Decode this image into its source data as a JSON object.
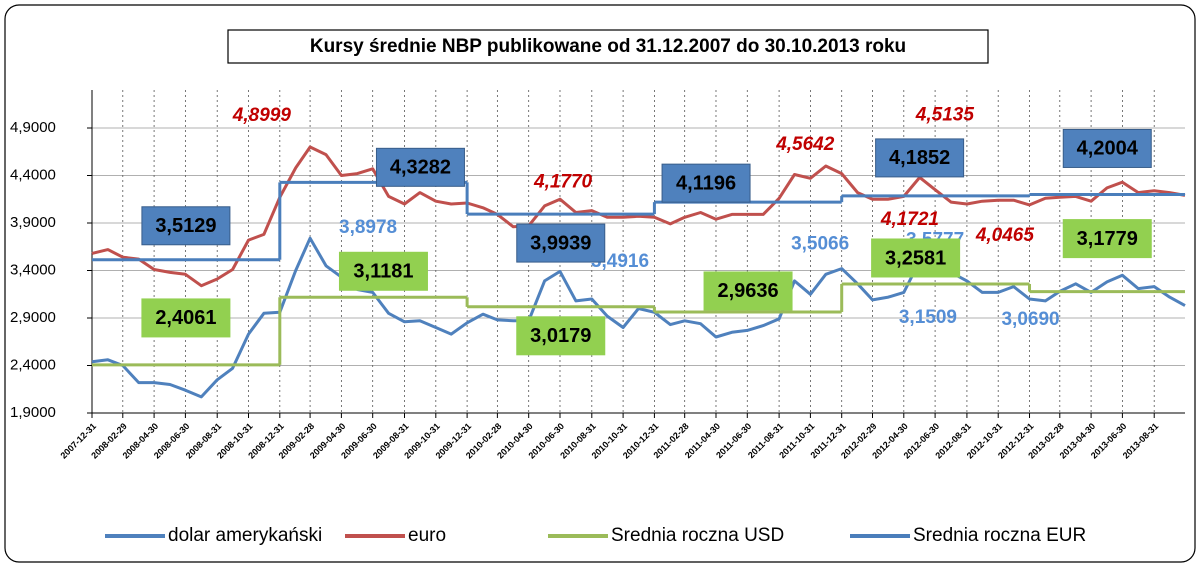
{
  "chart_data": {
    "type": "line",
    "title": "Kursy średnie NBP publikowane od 31.12.2007 do 30.10.2013 roku",
    "x": [
      "2007-12-31",
      "2008-01-31",
      "2008-02-29",
      "2008-03-31",
      "2008-04-30",
      "2008-05-31",
      "2008-06-30",
      "2008-07-31",
      "2008-08-31",
      "2008-09-30",
      "2008-10-31",
      "2008-11-30",
      "2008-12-31",
      "2009-01-31",
      "2009-02-28",
      "2009-03-31",
      "2009-04-30",
      "2009-05-31",
      "2009-06-30",
      "2009-07-31",
      "2009-08-31",
      "2009-09-30",
      "2009-10-31",
      "2009-11-30",
      "2009-12-31",
      "2010-01-31",
      "2010-02-28",
      "2010-03-31",
      "2010-04-30",
      "2010-05-31",
      "2010-06-30",
      "2010-07-31",
      "2010-08-31",
      "2010-09-30",
      "2010-10-31",
      "2010-11-30",
      "2010-12-31",
      "2011-01-31",
      "2011-02-28",
      "2011-03-31",
      "2011-04-30",
      "2011-05-31",
      "2011-06-30",
      "2011-07-31",
      "2011-08-31",
      "2011-09-30",
      "2011-10-31",
      "2011-11-30",
      "2011-12-31",
      "2012-01-31",
      "2012-02-29",
      "2012-03-31",
      "2012-04-30",
      "2012-05-31",
      "2012-06-30",
      "2012-07-31",
      "2012-08-31",
      "2012-09-30",
      "2012-10-31",
      "2012-11-30",
      "2012-12-31",
      "2013-01-31",
      "2013-02-28",
      "2013-03-31",
      "2013-04-30",
      "2013-05-31",
      "2013-06-30",
      "2013-07-31",
      "2013-08-31",
      "2013-09-30",
      "2013-10-30"
    ],
    "series": [
      {
        "name": "dolar amerykański",
        "color": "#4f81bd",
        "values": [
          2.44,
          2.46,
          2.4,
          2.22,
          2.22,
          2.2,
          2.14,
          2.07,
          2.25,
          2.37,
          2.73,
          2.95,
          2.96,
          3.4,
          3.74,
          3.45,
          3.33,
          3.2,
          3.17,
          2.95,
          2.86,
          2.87,
          2.8,
          2.73,
          2.85,
          2.94,
          2.88,
          2.87,
          2.87,
          3.29,
          3.39,
          3.08,
          3.1,
          2.92,
          2.8,
          3.0,
          2.96,
          2.83,
          2.87,
          2.84,
          2.7,
          2.75,
          2.77,
          2.82,
          2.89,
          3.29,
          3.15,
          3.36,
          3.42,
          3.26,
          3.09,
          3.12,
          3.17,
          3.5,
          3.4,
          3.38,
          3.29,
          3.17,
          3.17,
          3.23,
          3.1,
          3.08,
          3.18,
          3.26,
          3.17,
          3.28,
          3.35,
          3.21,
          3.23,
          3.12,
          3.03
        ]
      },
      {
        "name": "euro",
        "color": "#c0504d",
        "values": [
          3.58,
          3.62,
          3.54,
          3.52,
          3.41,
          3.38,
          3.36,
          3.24,
          3.31,
          3.41,
          3.72,
          3.78,
          4.17,
          4.48,
          4.7,
          4.62,
          4.4,
          4.42,
          4.47,
          4.18,
          4.1,
          4.22,
          4.13,
          4.1,
          4.11,
          4.06,
          3.99,
          3.86,
          3.87,
          4.08,
          4.15,
          4.01,
          4.03,
          3.96,
          3.96,
          3.97,
          3.96,
          3.89,
          3.96,
          4.01,
          3.94,
          3.99,
          3.99,
          3.99,
          4.16,
          4.41,
          4.37,
          4.5,
          4.42,
          4.22,
          4.15,
          4.15,
          4.18,
          4.38,
          4.25,
          4.12,
          4.1,
          4.13,
          4.14,
          4.14,
          4.09,
          4.16,
          4.17,
          4.18,
          4.13,
          4.27,
          4.33,
          4.22,
          4.24,
          4.22,
          4.19
        ]
      },
      {
        "name": "Srednia roczna USD",
        "color": "#9bbb59",
        "box_color": "#92d050",
        "x": [
          "2007-12-31",
          "2008-12-31",
          "2009-12-31",
          "2010-12-31",
          "2011-12-31",
          "2012-12-31"
        ],
        "values": [
          2.4061,
          3.1181,
          3.0179,
          2.9636,
          3.2581,
          3.1779
        ],
        "value_labels": [
          "2,4061",
          "3,1181",
          "3,0179",
          "2,9636",
          "3,2581",
          "3,1779"
        ]
      },
      {
        "name": "Srednia roczna EUR",
        "color": "#4a7ebb",
        "box_color": "#4f81bd",
        "x": [
          "2007-12-31",
          "2008-12-31",
          "2009-12-31",
          "2010-12-31",
          "2011-12-31",
          "2012-12-31"
        ],
        "values": [
          3.5129,
          4.3282,
          3.9939,
          4.1196,
          4.1852,
          4.2004
        ],
        "value_labels": [
          "3,5129",
          "4,3282",
          "3,9939",
          "4,1196",
          "4,1852",
          "4,2004"
        ]
      }
    ],
    "annotations": [
      {
        "text": "4,8999",
        "x": "2008-11-26",
        "value": 4.8999,
        "color": "#c00000"
      },
      {
        "text": "4,1770",
        "x": "2010-07-06",
        "value": 4.177,
        "color": "#c00000"
      },
      {
        "text": "4,5642",
        "x": "2011-10-21",
        "value": 4.5642,
        "color": "#c00000"
      },
      {
        "text": "4,5135",
        "x": "2012-07-19",
        "value": 4.5135,
        "color": "#c00000"
      },
      {
        "text": "4,1721",
        "x": "2012-05-12",
        "value": 4.1721,
        "color": "#c00000"
      },
      {
        "text": "4,0465",
        "x": "2012-11-13",
        "value": 4.0465,
        "color": "#c00000"
      },
      {
        "text": "3,8978",
        "x": "2009-06-21",
        "value": 3.8978,
        "color": "#558ed5"
      },
      {
        "text": "3,4916",
        "x": "2010-10-25",
        "value": 3.4916,
        "color": "#558ed5"
      },
      {
        "text": "3,5066",
        "x": "2011-11-19",
        "value": 3.5066,
        "color": "#558ed5"
      },
      {
        "text": "3,5777",
        "x": "2012-06-30",
        "value": 3.5777,
        "color": "#558ed5"
      },
      {
        "text": "3,1509",
        "x": "2012-06-16",
        "value": 3.1509,
        "color": "#558ed5"
      },
      {
        "text": "3,0690",
        "x": "2013-01-02",
        "value": 3.069,
        "color": "#558ed5"
      }
    ],
    "xlim": [
      "2007-12-31",
      "2013-10-30"
    ],
    "xticks": [
      "2007-12-31",
      "2008-02-29",
      "2008-04-30",
      "2008-06-30",
      "2008-08-31",
      "2008-10-31",
      "2008-12-31",
      "2009-02-28",
      "2009-04-30",
      "2009-06-30",
      "2009-08-31",
      "2009-10-31",
      "2009-12-31",
      "2010-02-28",
      "2010-04-30",
      "2010-06-30",
      "2010-08-31",
      "2010-10-31",
      "2010-12-31",
      "2011-02-28",
      "2011-04-30",
      "2011-06-30",
      "2011-08-31",
      "2011-10-31",
      "2011-12-31",
      "2012-02-29",
      "2012-04-30",
      "2012-06-30",
      "2012-08-31",
      "2012-10-31",
      "2012-12-31",
      "2013-02-28",
      "2013-04-30",
      "2013-06-30",
      "2013-08-31"
    ],
    "ylim": [
      1.9,
      5.3
    ],
    "yticks": [
      {
        "value": 1.9,
        "label": "1,9000"
      },
      {
        "value": 2.4,
        "label": "2,4000"
      },
      {
        "value": 2.9,
        "label": "2,9000"
      },
      {
        "value": 3.4,
        "label": "3,4000"
      },
      {
        "value": 3.9,
        "label": "3,9000"
      },
      {
        "value": 4.4,
        "label": "4,4000"
      },
      {
        "value": 4.9,
        "label": "4,9000"
      }
    ],
    "grid": true,
    "legend": "bottom"
  }
}
